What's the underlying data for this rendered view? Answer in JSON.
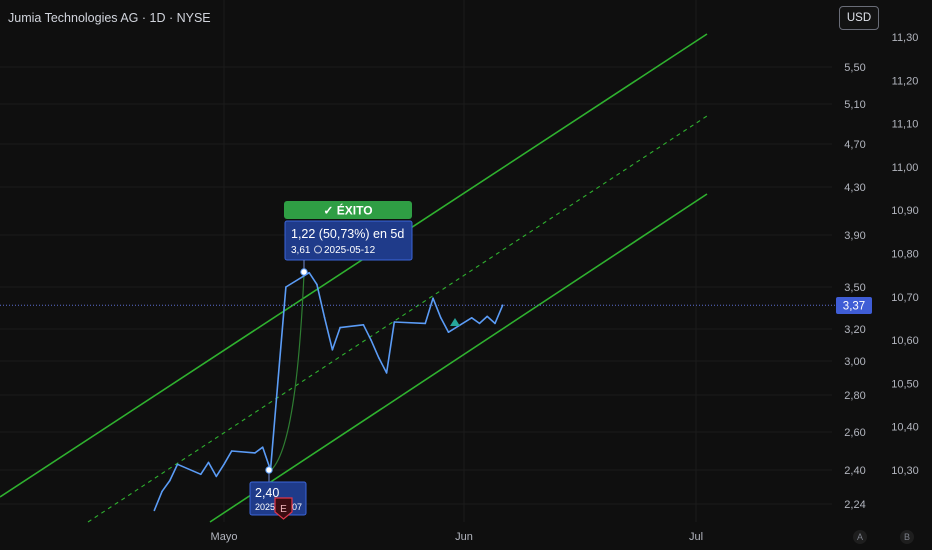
{
  "header": {
    "title": "Jumia Technologies AG · 1D · NYSE",
    "currency_button": "USD"
  },
  "footer": {
    "btn_a": "A",
    "btn_b": "B"
  },
  "chart_data": {
    "type": "line",
    "title": "Jumia Technologies AG · 1D · NYSE",
    "x_ticks": [
      "Mayo",
      "Jun",
      "Jul"
    ],
    "y_ticks_left": [
      "5,50",
      "5,10",
      "4,70",
      "4,30",
      "3,90",
      "3,50",
      "3,20",
      "3,00",
      "2,80",
      "2,60",
      "2,40",
      "2,24"
    ],
    "y_ticks_right": [
      "11,30",
      "11,20",
      "11,10",
      "11,00",
      "10,90",
      "10,80",
      "10,70",
      "10,60",
      "10,50",
      "10,40",
      "10,30"
    ],
    "last_price": "3,37",
    "series": [
      {
        "name": "",
        "color": "#5b9cf6",
        "x": [
          "2025-04-22",
          "2025-04-23",
          "2025-04-24",
          "2025-04-25",
          "2025-04-28",
          "2025-04-29",
          "2025-04-30",
          "2025-05-01",
          "2025-05-02",
          "2025-05-05",
          "2025-05-06",
          "2025-05-07",
          "2025-05-08",
          "2025-05-09",
          "2025-05-12",
          "2025-05-13",
          "2025-05-14",
          "2025-05-15",
          "2025-05-16",
          "2025-05-19",
          "2025-05-20",
          "2025-05-21",
          "2025-05-22",
          "2025-05-23",
          "2025-05-27",
          "2025-05-28",
          "2025-05-29",
          "2025-05-30",
          "2025-06-02",
          "2025-06-03",
          "2025-06-04",
          "2025-06-05",
          "2025-06-06"
        ],
        "y": [
          2.21,
          2.3,
          2.35,
          2.43,
          2.38,
          2.44,
          2.37,
          2.43,
          2.5,
          2.49,
          2.52,
          2.4,
          2.9,
          3.5,
          3.61,
          3.52,
          3.28,
          3.07,
          3.21,
          3.23,
          3.13,
          3.02,
          2.93,
          3.25,
          3.24,
          3.42,
          3.28,
          3.18,
          3.28,
          3.24,
          3.29,
          3.24,
          3.37
        ]
      }
    ],
    "annotations": {
      "status": "✓ ÉXITO",
      "change_text": "1,22 (50,73%) en 5d",
      "high_price": "3,61",
      "high_date": "2025-05-12",
      "low_price": "2,40",
      "low_date_visible": "2025",
      "low_date_tail": "07",
      "earnings_marker": "E"
    },
    "channel": {
      "color": "#2fb12f",
      "style": "parallel channel with dashed midline"
    },
    "grid": true
  }
}
